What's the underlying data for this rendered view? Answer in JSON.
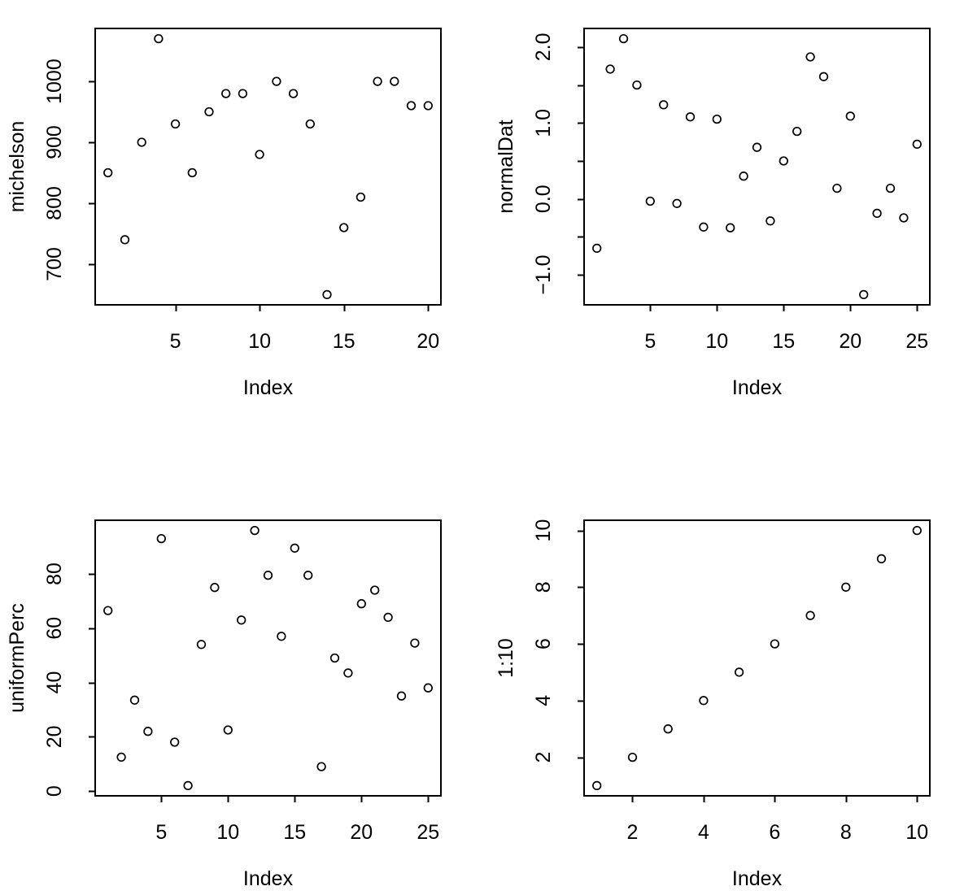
{
  "figure": {
    "background": "#ffffff",
    "foreground": "#000000",
    "layout": "2x2-grid-of-r-base-plots"
  },
  "chart_data": [
    {
      "id": "michelson",
      "type": "scatter",
      "title": "",
      "xlabel": "Index",
      "ylabel": "michelson",
      "marker": "open-circle",
      "grid": false,
      "legend": null,
      "x": [
        1,
        2,
        3,
        4,
        5,
        6,
        7,
        8,
        9,
        10,
        11,
        12,
        13,
        14,
        15,
        16,
        17,
        18,
        19,
        20
      ],
      "y": [
        850,
        740,
        900,
        1070,
        930,
        850,
        950,
        980,
        980,
        880,
        1000,
        980,
        930,
        650,
        760,
        810,
        1000,
        1000,
        960,
        960
      ],
      "xlim": [
        0.24,
        20.76
      ],
      "ylim": [
        633.2,
        1086.8
      ],
      "x_ticks": {
        "values": [
          5,
          10,
          15,
          20
        ],
        "labels": [
          "5",
          "10",
          "15",
          "20"
        ]
      },
      "y_ticks": {
        "values": [
          700,
          800,
          900,
          1000
        ],
        "labels": [
          "700",
          "800",
          "900",
          "1000"
        ]
      },
      "y_minor_ticks": []
    },
    {
      "id": "normalDat",
      "type": "scatter",
      "title": "",
      "xlabel": "Index",
      "ylabel": "normalDat",
      "marker": "open-circle",
      "grid": false,
      "legend": null,
      "x": [
        1,
        2,
        3,
        4,
        5,
        6,
        7,
        8,
        9,
        10,
        11,
        12,
        13,
        14,
        15,
        16,
        17,
        18,
        19,
        20,
        21,
        22,
        23,
        24,
        25
      ],
      "y": [
        -0.65,
        1.71,
        2.11,
        1.5,
        -0.03,
        1.24,
        -0.06,
        1.08,
        -0.37,
        1.05,
        -0.38,
        0.3,
        0.68,
        -0.29,
        0.5,
        0.89,
        1.87,
        1.61,
        0.14,
        1.09,
        -1.26,
        -0.19,
        0.14,
        -0.25,
        0.72
      ],
      "xlim": [
        0.04,
        25.96
      ],
      "ylim": [
        -1.395,
        2.245
      ],
      "x_ticks": {
        "values": [
          5,
          10,
          15,
          20,
          25
        ],
        "labels": [
          "5",
          "10",
          "15",
          "20",
          "25"
        ]
      },
      "y_ticks": {
        "values": [
          -1,
          0,
          1,
          2
        ],
        "labels": [
          "−1.0",
          "0.0",
          "1.0",
          "2.0"
        ]
      },
      "y_minor_ticks": [
        -0.5,
        0.5,
        1.5
      ]
    },
    {
      "id": "uniformPerc",
      "type": "scatter",
      "title": "",
      "xlabel": "Index",
      "ylabel": "uniformPerc",
      "marker": "open-circle",
      "grid": false,
      "legend": null,
      "x": [
        1,
        2,
        3,
        4,
        5,
        6,
        7,
        8,
        9,
        10,
        11,
        12,
        13,
        14,
        15,
        16,
        17,
        18,
        19,
        20,
        21,
        22,
        23,
        24,
        25
      ],
      "y": [
        66.5,
        12.5,
        33.5,
        22,
        93,
        18,
        2,
        54,
        75,
        22.5,
        63,
        96,
        79.5,
        57,
        89.5,
        79.5,
        9,
        49,
        43.5,
        69,
        74,
        64,
        35,
        54.5,
        38
      ],
      "xlim": [
        0.04,
        25.96
      ],
      "ylim": [
        -1.76,
        99.76
      ],
      "x_ticks": {
        "values": [
          5,
          10,
          15,
          20,
          25
        ],
        "labels": [
          "5",
          "10",
          "15",
          "20",
          "25"
        ]
      },
      "y_ticks": {
        "values": [
          0,
          20,
          40,
          60,
          80
        ],
        "labels": [
          "0",
          "20",
          "40",
          "60",
          "80"
        ]
      },
      "y_minor_ticks": []
    },
    {
      "id": "one-to-ten",
      "type": "scatter",
      "title": "",
      "xlabel": "Index",
      "ylabel": "1:10",
      "marker": "open-circle",
      "grid": false,
      "legend": null,
      "x": [
        1,
        2,
        3,
        4,
        5,
        6,
        7,
        8,
        9,
        10
      ],
      "y": [
        1,
        2,
        3,
        4,
        5,
        6,
        7,
        8,
        9,
        10
      ],
      "xlim": [
        0.64,
        10.36
      ],
      "ylim": [
        0.64,
        10.36
      ],
      "x_ticks": {
        "values": [
          2,
          4,
          6,
          8,
          10
        ],
        "labels": [
          "2",
          "4",
          "6",
          "8",
          "10"
        ]
      },
      "y_ticks": {
        "values": [
          2,
          4,
          6,
          8,
          10
        ],
        "labels": [
          "2",
          "4",
          "6",
          "8",
          "10"
        ]
      },
      "y_minor_ticks": []
    }
  ]
}
